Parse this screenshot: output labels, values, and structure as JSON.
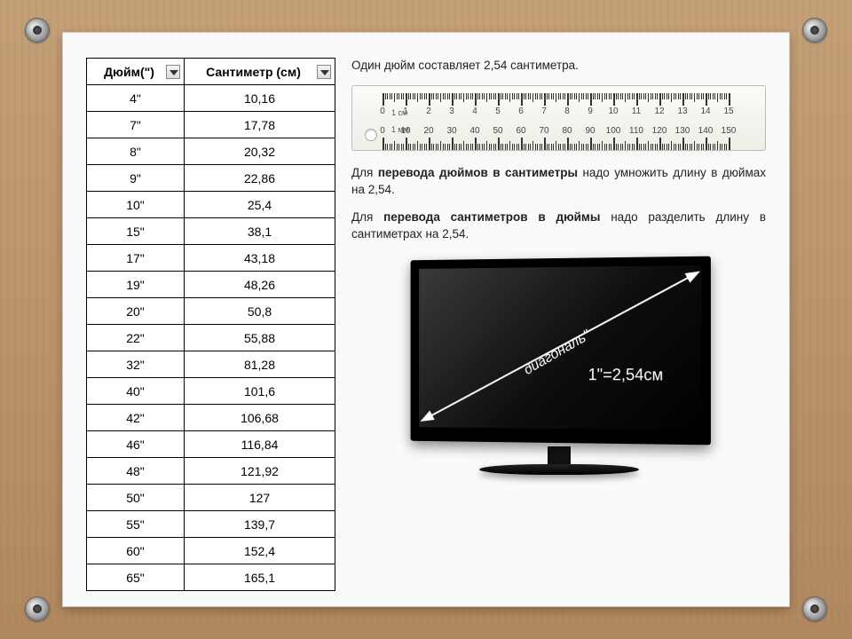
{
  "table": {
    "header_inch": "Дюйм(\")",
    "header_cm": "Сантиметр (см)",
    "rows": [
      {
        "in": "4\"",
        "cm": "10,16"
      },
      {
        "in": "7\"",
        "cm": "17,78"
      },
      {
        "in": "8\"",
        "cm": "20,32"
      },
      {
        "in": "9\"",
        "cm": "22,86"
      },
      {
        "in": "10\"",
        "cm": "25,4"
      },
      {
        "in": "15\"",
        "cm": "38,1"
      },
      {
        "in": "17\"",
        "cm": "43,18"
      },
      {
        "in": "19\"",
        "cm": "48,26"
      },
      {
        "in": "20\"",
        "cm": "50,8"
      },
      {
        "in": "22\"",
        "cm": "55,88"
      },
      {
        "in": "32\"",
        "cm": "81,28"
      },
      {
        "in": "40\"",
        "cm": "101,6"
      },
      {
        "in": "42\"",
        "cm": "106,68"
      },
      {
        "in": "46\"",
        "cm": "116,84"
      },
      {
        "in": "48\"",
        "cm": "121,92"
      },
      {
        "in": "50\"",
        "cm": "127"
      },
      {
        "in": "55\"",
        "cm": "139,7"
      },
      {
        "in": "60\"",
        "cm": "152,4"
      },
      {
        "in": "65\"",
        "cm": "165,1"
      }
    ]
  },
  "text": {
    "intro": "Один дюйм составляет 2,54 сантиметра.",
    "p1_prefix": "Для ",
    "p1_bold": "перевода дюймов в сантиметры",
    "p1_rest": " надо умножить длину в дюймах на 2,54.",
    "p2_prefix": "Для ",
    "p2_bold": "перевода сантиметров в дюймы",
    "p2_rest": " надо разделить длину в сантиметрах на 2,54."
  },
  "ruler": {
    "unit_top": "1 см",
    "unit_bot": "1 мм",
    "cm_max": 15,
    "mm_max": 150
  },
  "tv": {
    "diag_label": "диагональ\"",
    "equation": "1\"=2,54см"
  },
  "colors": {
    "border": "#000000",
    "text": "#222222",
    "white": "#ffffff"
  }
}
